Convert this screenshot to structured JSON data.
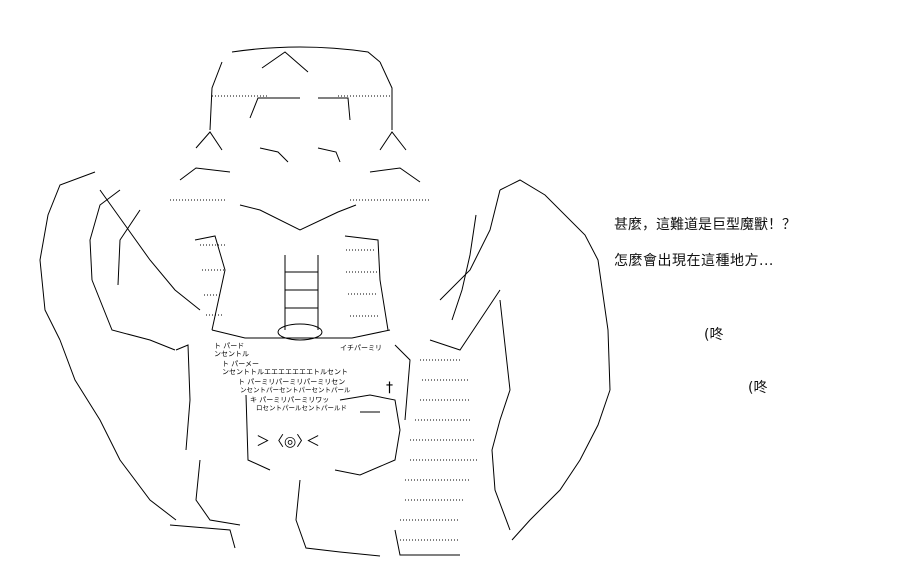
{
  "dialog": {
    "line1": "甚麼，這難道是巨型魔獸！？",
    "line2": "怎麼會出現在這種地方...",
    "sfx1": "(咚",
    "sfx2": "(咚"
  },
  "art": {
    "armor_text_1": "ト パード",
    "armor_text_2": "ンセントル",
    "armor_text_3": "イチパーミリ",
    "armor_text_4": "ト パーメー",
    "armor_text_5": "ンセントトルエエエエエエエトルセント",
    "armor_text_6": "ト パーミリパーミリパーミリセン",
    "armor_text_7": "ンセントパーセントパーセントパール",
    "armor_text_8": "キ パーミリパーミリワッ",
    "armor_text_9": "ロセントパールセントパールド",
    "cross": "†",
    "eye_left": "＞",
    "eye_center": "〈◎〉",
    "eye_right": "＜"
  },
  "colors": {
    "ink": "#000000",
    "background": "#ffffff"
  }
}
